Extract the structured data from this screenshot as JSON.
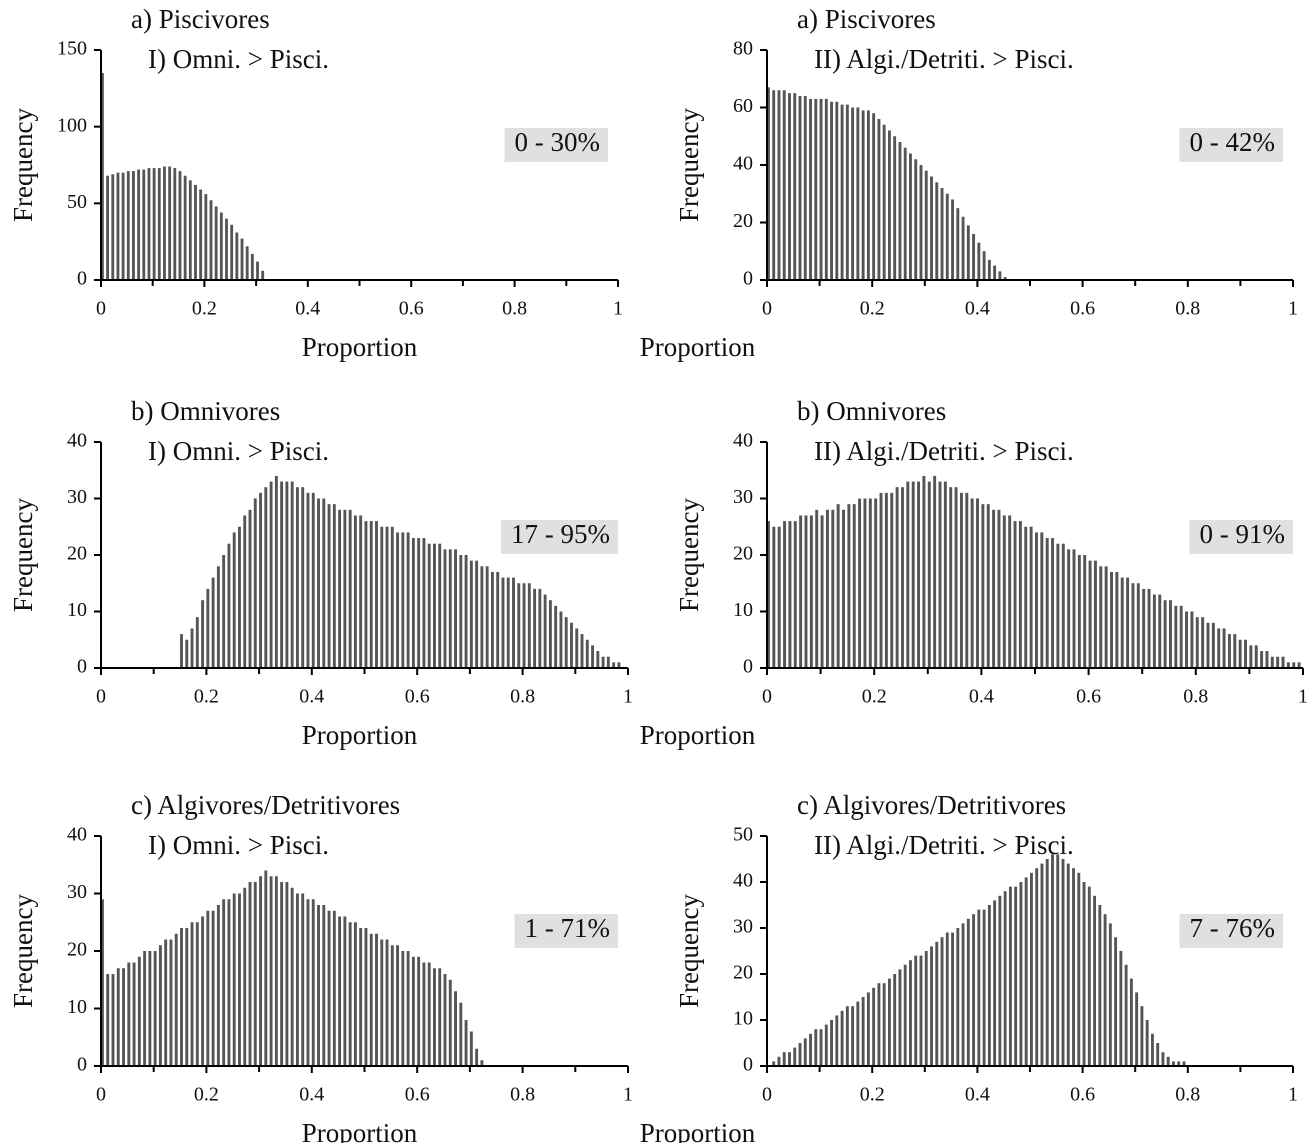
{
  "chart_data": [
    {
      "type": "histogram",
      "title": "a) Piscivores",
      "subtitle": "I) Omni. > Pisci.",
      "annotation": "0 - 30%",
      "xlabel": "Proportion",
      "ylabel": "Frequency",
      "color": "#555555",
      "xlim": [
        0,
        1
      ],
      "ylim": [
        0,
        150
      ],
      "xticks": [
        0,
        0.2,
        0.4,
        0.6,
        0.8,
        1
      ],
      "yticks": [
        0,
        50,
        100,
        150
      ],
      "bins": [
        0,
        0.01,
        0.02,
        0.03,
        0.04,
        0.05,
        0.06,
        0.07,
        0.08,
        0.09,
        0.1,
        0.11,
        0.12,
        0.13,
        0.14,
        0.15,
        0.16,
        0.17,
        0.18,
        0.19,
        0.2,
        0.21,
        0.22,
        0.23,
        0.24,
        0.25,
        0.26,
        0.27,
        0.28,
        0.29,
        0.3,
        0.31,
        0.32
      ],
      "values": [
        135,
        68,
        69,
        70,
        70,
        71,
        71,
        72,
        72,
        73,
        73,
        73,
        74,
        74,
        73,
        71,
        68,
        65,
        62,
        59,
        56,
        52,
        48,
        44,
        40,
        36,
        31,
        27,
        22,
        17,
        12,
        6
      ]
    },
    {
      "type": "histogram",
      "title": "a) Piscivores",
      "subtitle": "II) Algi./Detriti. > Pisci.",
      "annotation": "0 - 42%",
      "xlabel": "Proportion",
      "ylabel": "Frequency",
      "color": "#555555",
      "xlim": [
        0,
        1
      ],
      "ylim": [
        0,
        80
      ],
      "xticks": [
        0,
        0.2,
        0.4,
        0.6,
        0.8,
        1
      ],
      "yticks": [
        0,
        20,
        40,
        60,
        80
      ],
      "bins": [
        0,
        0.01,
        0.02,
        0.03,
        0.04,
        0.05,
        0.06,
        0.07,
        0.08,
        0.09,
        0.1,
        0.11,
        0.12,
        0.13,
        0.14,
        0.15,
        0.16,
        0.17,
        0.18,
        0.19,
        0.2,
        0.21,
        0.22,
        0.23,
        0.24,
        0.25,
        0.26,
        0.27,
        0.28,
        0.29,
        0.3,
        0.31,
        0.32,
        0.33,
        0.34,
        0.35,
        0.36,
        0.37,
        0.38,
        0.39,
        0.4,
        0.41,
        0.42,
        0.43,
        0.44,
        0.45,
        0.46
      ],
      "values": [
        67,
        66,
        66,
        66,
        65,
        65,
        64,
        64,
        63,
        63,
        63,
        63,
        62,
        62,
        61,
        61,
        60,
        60,
        59,
        59,
        58,
        56,
        54,
        52,
        50,
        48,
        46,
        44,
        42,
        40,
        38,
        36,
        34,
        32,
        30,
        28,
        25,
        22,
        19,
        16,
        13,
        10,
        7,
        5,
        3,
        1
      ]
    },
    {
      "type": "histogram",
      "title": "b) Omnivores",
      "subtitle": "I) Omni. > Pisci.",
      "annotation": "17 - 95%",
      "xlabel": "Proportion",
      "ylabel": "Frequency",
      "color": "#555555",
      "xlim": [
        0,
        1
      ],
      "ylim": [
        0,
        40
      ],
      "xticks": [
        0,
        0.2,
        0.4,
        0.6,
        0.8,
        1
      ],
      "yticks": [
        0,
        10,
        20,
        30,
        40
      ],
      "bins": [
        0.15,
        0.16,
        0.17,
        0.18,
        0.19,
        0.2,
        0.21,
        0.22,
        0.23,
        0.24,
        0.25,
        0.26,
        0.27,
        0.28,
        0.29,
        0.3,
        0.31,
        0.32,
        0.33,
        0.34,
        0.35,
        0.36,
        0.37,
        0.38,
        0.39,
        0.4,
        0.41,
        0.42,
        0.43,
        0.44,
        0.45,
        0.46,
        0.47,
        0.48,
        0.49,
        0.5,
        0.51,
        0.52,
        0.53,
        0.54,
        0.55,
        0.56,
        0.57,
        0.58,
        0.59,
        0.6,
        0.61,
        0.62,
        0.63,
        0.64,
        0.65,
        0.66,
        0.67,
        0.68,
        0.69,
        0.7,
        0.71,
        0.72,
        0.73,
        0.74,
        0.75,
        0.76,
        0.77,
        0.78,
        0.79,
        0.8,
        0.81,
        0.82,
        0.83,
        0.84,
        0.85,
        0.86,
        0.87,
        0.88,
        0.89,
        0.9,
        0.91,
        0.92,
        0.93,
        0.94,
        0.95,
        0.96,
        0.97,
        0.98,
        0.99
      ],
      "values": [
        6,
        5,
        7,
        9,
        12,
        14,
        16,
        18,
        20,
        22,
        24,
        25,
        27,
        28,
        30,
        31,
        32,
        33,
        34,
        33,
        33,
        33,
        32,
        32,
        31,
        31,
        30,
        30,
        29,
        29,
        28,
        28,
        28,
        27,
        27,
        26,
        26,
        26,
        25,
        25,
        25,
        24,
        24,
        24,
        23,
        23,
        23,
        22,
        22,
        22,
        21,
        21,
        21,
        20,
        20,
        19,
        19,
        18,
        18,
        17,
        17,
        16,
        16,
        16,
        15,
        15,
        15,
        14,
        14,
        13,
        12,
        11,
        10,
        9,
        8,
        7,
        6,
        5,
        4,
        3,
        2,
        2,
        1,
        1
      ]
    },
    {
      "type": "histogram",
      "title": "b) Omnivores",
      "subtitle": "II) Algi./Detriti. > Pisci.",
      "annotation": "0 - 91%",
      "xlabel": "Proportion",
      "ylabel": "Frequency",
      "color": "#555555",
      "xlim": [
        0,
        1
      ],
      "ylim": [
        0,
        40
      ],
      "xticks": [
        0,
        0.2,
        0.4,
        0.6,
        0.8,
        1
      ],
      "yticks": [
        0,
        10,
        20,
        30,
        40
      ],
      "bins": [
        0,
        0.01,
        0.02,
        0.03,
        0.04,
        0.05,
        0.06,
        0.07,
        0.08,
        0.09,
        0.1,
        0.11,
        0.12,
        0.13,
        0.14,
        0.15,
        0.16,
        0.17,
        0.18,
        0.19,
        0.2,
        0.21,
        0.22,
        0.23,
        0.24,
        0.25,
        0.26,
        0.27,
        0.28,
        0.29,
        0.3,
        0.31,
        0.32,
        0.33,
        0.34,
        0.35,
        0.36,
        0.37,
        0.38,
        0.39,
        0.4,
        0.41,
        0.42,
        0.43,
        0.44,
        0.45,
        0.46,
        0.47,
        0.48,
        0.49,
        0.5,
        0.51,
        0.52,
        0.53,
        0.54,
        0.55,
        0.56,
        0.57,
        0.58,
        0.59,
        0.6,
        0.61,
        0.62,
        0.63,
        0.64,
        0.65,
        0.66,
        0.67,
        0.68,
        0.69,
        0.7,
        0.71,
        0.72,
        0.73,
        0.74,
        0.75,
        0.76,
        0.77,
        0.78,
        0.79,
        0.8,
        0.81,
        0.82,
        0.83,
        0.84,
        0.85,
        0.86,
        0.87,
        0.88,
        0.89,
        0.9,
        0.91,
        0.92,
        0.93,
        0.94,
        0.95,
        0.96,
        0.97,
        0.98,
        0.99,
        1
      ],
      "values": [
        26,
        25,
        25,
        26,
        26,
        26,
        27,
        27,
        27,
        28,
        27,
        28,
        28,
        29,
        28,
        29,
        29,
        30,
        30,
        30,
        30,
        31,
        31,
        31,
        32,
        32,
        33,
        33,
        33,
        34,
        33,
        34,
        33,
        33,
        32,
        32,
        31,
        31,
        30,
        30,
        29,
        29,
        28,
        28,
        27,
        27,
        26,
        26,
        25,
        25,
        24,
        24,
        23,
        23,
        22,
        22,
        21,
        21,
        20,
        20,
        19,
        19,
        18,
        18,
        17,
        17,
        16,
        16,
        15,
        15,
        14,
        14,
        13,
        13,
        12,
        12,
        11,
        11,
        10,
        10,
        9,
        9,
        8,
        8,
        7,
        7,
        6,
        6,
        5,
        5,
        4,
        4,
        3,
        3,
        2,
        2,
        2,
        1,
        1,
        1
      ]
    },
    {
      "type": "histogram",
      "title": "c) Algivores/Detritivores",
      "subtitle": "I) Omni. > Pisci.",
      "annotation": "1 - 71%",
      "xlabel": "Proportion",
      "ylabel": "Frequency",
      "color": "#555555",
      "xlim": [
        0,
        1
      ],
      "ylim": [
        0,
        40
      ],
      "xticks": [
        0,
        0.2,
        0.4,
        0.6,
        0.8,
        1
      ],
      "yticks": [
        0,
        10,
        20,
        30,
        40
      ],
      "bins": [
        0,
        0.01,
        0.02,
        0.03,
        0.04,
        0.05,
        0.06,
        0.07,
        0.08,
        0.09,
        0.1,
        0.11,
        0.12,
        0.13,
        0.14,
        0.15,
        0.16,
        0.17,
        0.18,
        0.19,
        0.2,
        0.21,
        0.22,
        0.23,
        0.24,
        0.25,
        0.26,
        0.27,
        0.28,
        0.29,
        0.3,
        0.31,
        0.32,
        0.33,
        0.34,
        0.35,
        0.36,
        0.37,
        0.38,
        0.39,
        0.4,
        0.41,
        0.42,
        0.43,
        0.44,
        0.45,
        0.46,
        0.47,
        0.48,
        0.49,
        0.5,
        0.51,
        0.52,
        0.53,
        0.54,
        0.55,
        0.56,
        0.57,
        0.58,
        0.59,
        0.6,
        0.61,
        0.62,
        0.63,
        0.64,
        0.65,
        0.66,
        0.67,
        0.68,
        0.69,
        0.7,
        0.71,
        0.72,
        0.73
      ],
      "values": [
        29,
        16,
        16,
        17,
        17,
        18,
        18,
        19,
        20,
        20,
        20,
        21,
        22,
        22,
        23,
        24,
        24,
        25,
        25,
        26,
        27,
        27,
        28,
        29,
        29,
        30,
        30,
        31,
        32,
        32,
        33,
        34,
        33,
        33,
        32,
        32,
        31,
        30,
        30,
        29,
        29,
        28,
        28,
        27,
        27,
        26,
        26,
        25,
        25,
        24,
        24,
        23,
        23,
        22,
        22,
        21,
        21,
        20,
        20,
        19,
        19,
        18,
        18,
        17,
        17,
        16,
        15,
        13,
        11,
        8,
        6,
        3,
        1
      ]
    },
    {
      "type": "histogram",
      "title": "c) Algivores/Detritivores",
      "subtitle": "II) Algi./Detriti. > Pisci.",
      "annotation": "7 - 76%",
      "xlabel": "Proportion",
      "ylabel": "Frequency",
      "color": "#555555",
      "xlim": [
        0,
        1
      ],
      "ylim": [
        0,
        50
      ],
      "xticks": [
        0,
        0.2,
        0.4,
        0.6,
        0.8,
        1
      ],
      "yticks": [
        0,
        10,
        20,
        30,
        40,
        50
      ],
      "bins": [
        0,
        0.01,
        0.02,
        0.03,
        0.04,
        0.05,
        0.06,
        0.07,
        0.08,
        0.09,
        0.1,
        0.11,
        0.12,
        0.13,
        0.14,
        0.15,
        0.16,
        0.17,
        0.18,
        0.19,
        0.2,
        0.21,
        0.22,
        0.23,
        0.24,
        0.25,
        0.26,
        0.27,
        0.28,
        0.29,
        0.3,
        0.31,
        0.32,
        0.33,
        0.34,
        0.35,
        0.36,
        0.37,
        0.38,
        0.39,
        0.4,
        0.41,
        0.42,
        0.43,
        0.44,
        0.45,
        0.46,
        0.47,
        0.48,
        0.49,
        0.5,
        0.51,
        0.52,
        0.53,
        0.54,
        0.55,
        0.56,
        0.57,
        0.58,
        0.59,
        0.6,
        0.61,
        0.62,
        0.63,
        0.64,
        0.65,
        0.66,
        0.67,
        0.68,
        0.69,
        0.7,
        0.71,
        0.72,
        0.73,
        0.74,
        0.75,
        0.76,
        0.77,
        0.78,
        0.79,
        0.8
      ],
      "values": [
        0,
        1,
        2,
        3,
        3,
        4,
        5,
        6,
        7,
        8,
        8,
        9,
        10,
        11,
        12,
        13,
        13,
        14,
        15,
        16,
        17,
        18,
        18,
        19,
        20,
        21,
        22,
        23,
        24,
        24,
        25,
        26,
        27,
        28,
        29,
        29,
        30,
        31,
        32,
        33,
        34,
        34,
        35,
        36,
        37,
        38,
        39,
        39,
        40,
        41,
        42,
        43,
        44,
        45,
        46,
        46,
        45,
        44,
        43,
        42,
        40,
        39,
        37,
        35,
        33,
        31,
        28,
        25,
        22,
        19,
        16,
        13,
        10,
        7,
        5,
        3,
        2,
        1,
        1,
        1
      ]
    }
  ]
}
